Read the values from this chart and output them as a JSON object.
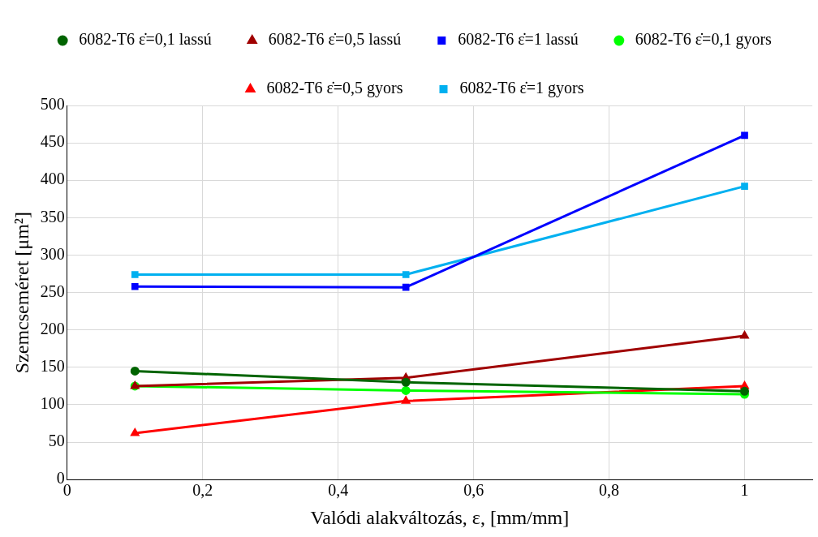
{
  "chart_data": {
    "type": "line",
    "xlabel": "Valódi alakváltozás, ε, [mm/mm]",
    "ylabel": "Szemcseméret [μm²]",
    "x": [
      0.1,
      0.5,
      1
    ],
    "xlim": [
      0,
      1.1
    ],
    "xticks": [
      0,
      {
        "value": 0.2,
        "label": "0,2"
      },
      {
        "value": 0.4,
        "label": "0,4"
      },
      {
        "value": 0.6,
        "label": "0,6"
      },
      {
        "value": 0.8,
        "label": "0,8"
      },
      1
    ],
    "ylim": [
      0,
      500
    ],
    "yticks": [
      0,
      50,
      100,
      150,
      200,
      250,
      300,
      350,
      400,
      450,
      500
    ],
    "grid": true,
    "legend": "top",
    "line_style": "solid",
    "series": [
      {
        "name": "6082-T6 ε̇=0,1 lassú",
        "color": "#006400",
        "marker": "circle",
        "values": [
          145,
          130,
          118
        ]
      },
      {
        "name": "6082-T6 ε̇=0,5 lassú",
        "color": "#a00000",
        "marker": "triangle",
        "values": [
          125,
          136,
          192
        ]
      },
      {
        "name": "6082-T6 ε̇=1 lassú",
        "color": "#0000ff",
        "marker": "square",
        "values": [
          258,
          257,
          460
        ]
      },
      {
        "name": "6082-T6 ε̇=0,1 gyors",
        "color": "#00ff00",
        "marker": "circle",
        "values": [
          125,
          119,
          114
        ]
      },
      {
        "name": "6082-T6 ε̇=0,5 gyors",
        "color": "#ff0000",
        "marker": "triangle",
        "values": [
          62,
          105,
          125
        ]
      },
      {
        "name": "6082-T6 ε̇=1 gyors",
        "color": "#00b0f0",
        "marker": "square",
        "values": [
          274,
          274,
          392
        ]
      }
    ]
  }
}
